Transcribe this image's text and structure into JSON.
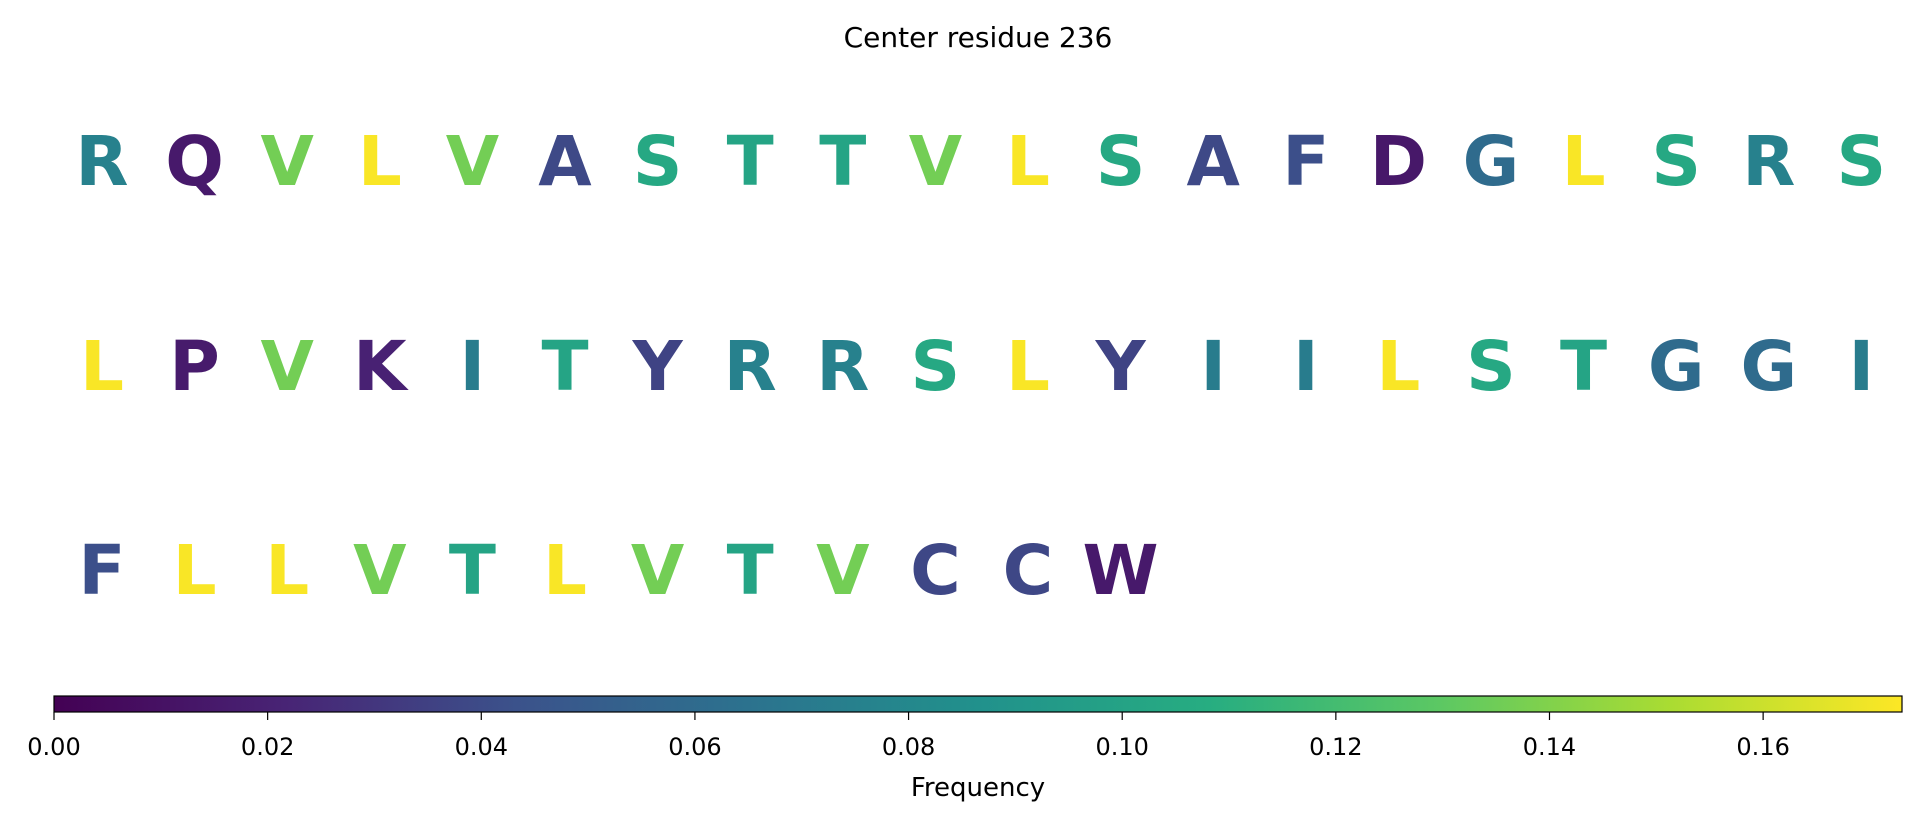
{
  "chart_data": {
    "type": "sequence_heatmap",
    "title": "Center residue 236",
    "residues": [
      {
        "letter": "R",
        "frequency": 0.075
      },
      {
        "letter": "Q",
        "frequency": 0.015
      },
      {
        "letter": "V",
        "frequency": 0.136
      },
      {
        "letter": "L",
        "frequency": 0.172
      },
      {
        "letter": "V",
        "frequency": 0.136
      },
      {
        "letter": "A",
        "frequency": 0.039
      },
      {
        "letter": "S",
        "frequency": 0.104
      },
      {
        "letter": "T",
        "frequency": 0.101
      },
      {
        "letter": "T",
        "frequency": 0.101
      },
      {
        "letter": "V",
        "frequency": 0.136
      },
      {
        "letter": "L",
        "frequency": 0.172
      },
      {
        "letter": "S",
        "frequency": 0.104
      },
      {
        "letter": "A",
        "frequency": 0.039
      },
      {
        "letter": "F",
        "frequency": 0.042
      },
      {
        "letter": "D",
        "frequency": 0.014
      },
      {
        "letter": "G",
        "frequency": 0.06
      },
      {
        "letter": "L",
        "frequency": 0.172
      },
      {
        "letter": "S",
        "frequency": 0.104
      },
      {
        "letter": "R",
        "frequency": 0.075
      },
      {
        "letter": "S",
        "frequency": 0.104
      },
      {
        "letter": "L",
        "frequency": 0.172
      },
      {
        "letter": "P",
        "frequency": 0.016
      },
      {
        "letter": "V",
        "frequency": 0.136
      },
      {
        "letter": "K",
        "frequency": 0.02
      },
      {
        "letter": "I",
        "frequency": 0.072
      },
      {
        "letter": "T",
        "frequency": 0.101
      },
      {
        "letter": "Y",
        "frequency": 0.036
      },
      {
        "letter": "R",
        "frequency": 0.075
      },
      {
        "letter": "R",
        "frequency": 0.075
      },
      {
        "letter": "S",
        "frequency": 0.104
      },
      {
        "letter": "L",
        "frequency": 0.172
      },
      {
        "letter": "Y",
        "frequency": 0.036
      },
      {
        "letter": "I",
        "frequency": 0.072
      },
      {
        "letter": "I",
        "frequency": 0.072
      },
      {
        "letter": "L",
        "frequency": 0.172
      },
      {
        "letter": "S",
        "frequency": 0.104
      },
      {
        "letter": "T",
        "frequency": 0.101
      },
      {
        "letter": "G",
        "frequency": 0.06
      },
      {
        "letter": "G",
        "frequency": 0.06
      },
      {
        "letter": "I",
        "frequency": 0.072
      },
      {
        "letter": "F",
        "frequency": 0.042
      },
      {
        "letter": "L",
        "frequency": 0.172
      },
      {
        "letter": "L",
        "frequency": 0.172
      },
      {
        "letter": "V",
        "frequency": 0.136
      },
      {
        "letter": "T",
        "frequency": 0.101
      },
      {
        "letter": "L",
        "frequency": 0.172
      },
      {
        "letter": "V",
        "frequency": 0.136
      },
      {
        "letter": "T",
        "frequency": 0.101
      },
      {
        "letter": "V",
        "frequency": 0.136
      },
      {
        "letter": "C",
        "frequency": 0.038
      },
      {
        "letter": "C",
        "frequency": 0.038
      },
      {
        "letter": "W",
        "frequency": 0.015
      }
    ],
    "letters_per_row": 20,
    "colormap": "viridis",
    "colorbar": {
      "label": "Frequency",
      "min": 0.0,
      "max": 0.173,
      "ticks": [
        0.0,
        0.02,
        0.04,
        0.06,
        0.08,
        0.1,
        0.12,
        0.14,
        0.16
      ],
      "tick_labels": [
        "0.00",
        "0.02",
        "0.04",
        "0.06",
        "0.08",
        "0.10",
        "0.12",
        "0.14",
        "0.16"
      ],
      "orientation": "horizontal"
    }
  }
}
